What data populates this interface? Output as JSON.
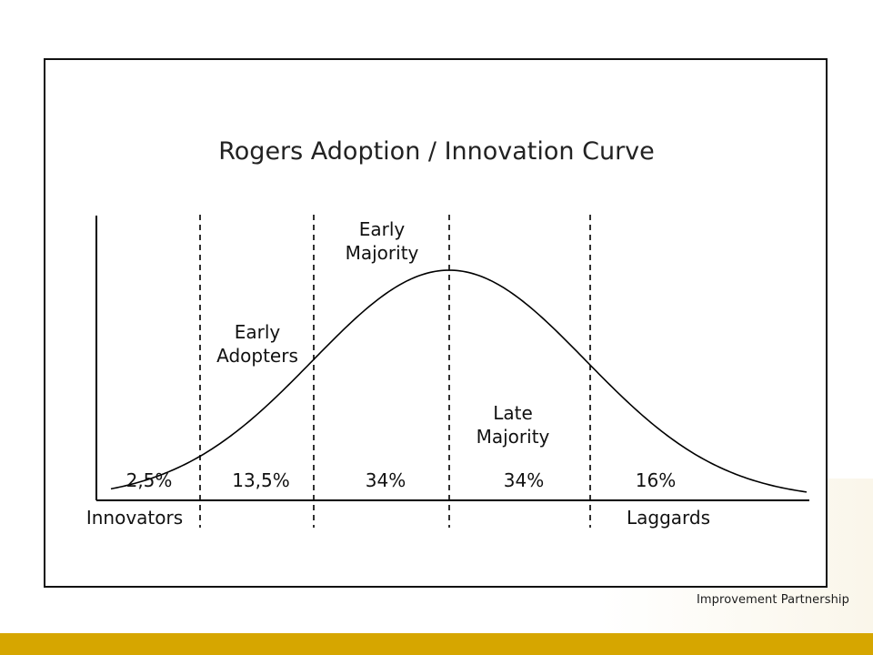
{
  "diagram": {
    "title": "Rogers Adoption / Innovation Curve",
    "segments": [
      {
        "label": "2,5%"
      },
      {
        "label": "13,5%"
      },
      {
        "label": "34%"
      },
      {
        "label": "34%"
      },
      {
        "label": "16%"
      }
    ],
    "groups": {
      "innovators": "Innovators",
      "early_adopters": [
        "Early",
        "Adopters"
      ],
      "early_majority": [
        "Early",
        "Majority"
      ],
      "late_majority": [
        "Late",
        "Majority"
      ],
      "laggards": "Laggards"
    }
  },
  "branding": {
    "text": "Improvement Partnership",
    "footer_color": "#d6a600"
  }
}
